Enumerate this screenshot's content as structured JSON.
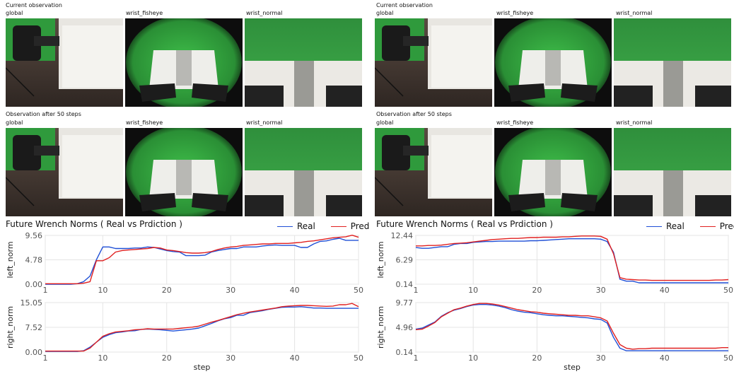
{
  "panels": [
    {
      "current_label": "Current observation",
      "after_label": "Observation after 50 steps",
      "camera_labels": [
        "global",
        "wrist_fisheye",
        "wrist_normal"
      ]
    },
    {
      "current_label": "Current observation",
      "after_label": "Observation after 50 steps",
      "camera_labels": [
        "global",
        "wrist_fisheye",
        "wrist_normal"
      ]
    }
  ],
  "chart_data": [
    {
      "type": "line",
      "title": "Future Wrench Norms ( Real vs Prdiction )",
      "legend": [
        "Real",
        "Pred"
      ],
      "legend_position": "top-right",
      "colors": {
        "Real": "#1f4fd6",
        "Pred": "#e02020"
      },
      "grid": true,
      "subplots": [
        {
          "ylabel": "left_norm",
          "yticks": [
            "0.00",
            "4.78",
            "9.56"
          ],
          "ylim": [
            0,
            9.56
          ],
          "xticks": [
            "1",
            "10",
            "20",
            "30",
            "40",
            "50"
          ],
          "xlim": [
            1,
            50
          ],
          "x": [
            1,
            2,
            3,
            4,
            5,
            6,
            7,
            8,
            9,
            10,
            11,
            12,
            13,
            14,
            15,
            16,
            17,
            18,
            19,
            20,
            21,
            22,
            23,
            24,
            25,
            26,
            27,
            28,
            29,
            30,
            31,
            32,
            33,
            34,
            35,
            36,
            37,
            38,
            39,
            40,
            41,
            42,
            43,
            44,
            45,
            46,
            47,
            48,
            49,
            50
          ],
          "series": [
            {
              "name": "Real",
              "values": [
                0.0,
                0.0,
                0.0,
                0.0,
                0.0,
                0.1,
                0.5,
                1.6,
                4.8,
                7.3,
                7.3,
                7.0,
                7.0,
                7.0,
                7.1,
                7.1,
                7.3,
                7.2,
                6.9,
                6.6,
                6.4,
                6.3,
                5.6,
                5.6,
                5.6,
                5.7,
                6.3,
                6.6,
                6.8,
                7.0,
                7.0,
                7.3,
                7.3,
                7.3,
                7.5,
                7.6,
                7.7,
                7.6,
                7.6,
                7.6,
                7.2,
                7.2,
                7.9,
                8.4,
                8.5,
                8.8,
                9.0,
                8.6,
                8.6,
                8.6
              ]
            },
            {
              "name": "Pred",
              "values": [
                0.1,
                0.1,
                0.1,
                0.1,
                0.1,
                0.1,
                0.2,
                0.5,
                4.6,
                4.6,
                5.2,
                6.3,
                6.6,
                6.7,
                6.8,
                6.9,
                7.0,
                7.2,
                7.1,
                6.7,
                6.6,
                6.4,
                6.2,
                6.1,
                6.1,
                6.2,
                6.4,
                6.8,
                7.1,
                7.3,
                7.4,
                7.6,
                7.7,
                7.8,
                7.9,
                7.9,
                8.0,
                8.0,
                8.0,
                8.1,
                8.2,
                8.4,
                8.5,
                8.7,
                8.9,
                9.1,
                9.2,
                9.3,
                9.6,
                9.2
              ]
            }
          ]
        },
        {
          "ylabel": "right_norm",
          "xlabel": "step",
          "yticks": [
            "0.00",
            "7.52",
            "15.05"
          ],
          "ylim": [
            0,
            15.05
          ],
          "xticks": [
            "1",
            "10",
            "20",
            "30",
            "40",
            "50"
          ],
          "xlim": [
            1,
            50
          ],
          "x": [
            1,
            2,
            3,
            4,
            5,
            6,
            7,
            8,
            9,
            10,
            11,
            12,
            13,
            14,
            15,
            16,
            17,
            18,
            19,
            20,
            21,
            22,
            23,
            24,
            25,
            26,
            27,
            28,
            29,
            30,
            31,
            32,
            33,
            34,
            35,
            36,
            37,
            38,
            39,
            40,
            41,
            42,
            43,
            44,
            45,
            46,
            47,
            48,
            49,
            50
          ],
          "series": [
            {
              "name": "Real",
              "values": [
                0.2,
                0.2,
                0.2,
                0.2,
                0.2,
                0.2,
                0.4,
                1.5,
                3.0,
                4.5,
                5.3,
                5.9,
                6.1,
                6.4,
                6.5,
                6.9,
                7.0,
                6.9,
                6.8,
                6.6,
                6.4,
                6.6,
                6.8,
                7.0,
                7.3,
                8.0,
                8.7,
                9.5,
                10.1,
                10.5,
                11.2,
                11.2,
                12.0,
                12.3,
                12.6,
                13.0,
                13.3,
                13.6,
                13.7,
                13.7,
                13.8,
                13.6,
                13.4,
                13.4,
                13.3,
                13.3,
                13.3,
                13.3,
                13.3,
                13.3
              ]
            },
            {
              "name": "Pred",
              "values": [
                0.3,
                0.3,
                0.3,
                0.3,
                0.3,
                0.3,
                0.3,
                1.2,
                3.0,
                4.8,
                5.6,
                6.1,
                6.3,
                6.5,
                6.8,
                6.9,
                7.1,
                7.0,
                7.0,
                7.0,
                7.0,
                7.2,
                7.4,
                7.6,
                7.9,
                8.5,
                9.1,
                9.6,
                10.2,
                10.8,
                11.4,
                11.8,
                12.2,
                12.5,
                12.8,
                13.1,
                13.4,
                13.8,
                14.0,
                14.1,
                14.2,
                14.2,
                14.1,
                14.0,
                13.9,
                14.0,
                14.4,
                14.4,
                14.8,
                13.8
              ]
            }
          ]
        }
      ]
    },
    {
      "type": "line",
      "title": "Future Wrench Norms ( Real vs Prdiction )",
      "legend": [
        "Real",
        "Pred"
      ],
      "legend_position": "top-right",
      "colors": {
        "Real": "#1f4fd6",
        "Pred": "#e02020"
      },
      "grid": true,
      "subplots": [
        {
          "ylabel": "left_norm",
          "yticks": [
            "0.14",
            "6.29",
            "12.44"
          ],
          "ylim": [
            0.14,
            12.44
          ],
          "xticks": [
            "1",
            "10",
            "20",
            "30",
            "40",
            "50"
          ],
          "xlim": [
            1,
            50
          ],
          "x": [
            1,
            2,
            3,
            4,
            5,
            6,
            7,
            8,
            9,
            10,
            11,
            12,
            13,
            14,
            15,
            16,
            17,
            18,
            19,
            20,
            21,
            22,
            23,
            24,
            25,
            26,
            27,
            28,
            29,
            30,
            31,
            32,
            33,
            34,
            35,
            36,
            37,
            38,
            39,
            40,
            41,
            42,
            43,
            44,
            45,
            46,
            47,
            48,
            49,
            50
          ],
          "series": [
            {
              "name": "Real",
              "values": [
                9.4,
                9.2,
                9.2,
                9.4,
                9.6,
                9.6,
                10.2,
                10.4,
                10.4,
                10.7,
                10.8,
                10.9,
                10.9,
                11.0,
                11.0,
                11.0,
                11.0,
                11.0,
                11.1,
                11.1,
                11.2,
                11.3,
                11.4,
                11.5,
                11.6,
                11.6,
                11.6,
                11.6,
                11.6,
                11.5,
                10.9,
                8.2,
                1.4,
                0.9,
                0.9,
                0.5,
                0.5,
                0.5,
                0.5,
                0.5,
                0.5,
                0.5,
                0.5,
                0.5,
                0.5,
                0.5,
                0.5,
                0.5,
                0.5,
                0.5
              ]
            },
            {
              "name": "Pred",
              "values": [
                9.8,
                9.8,
                9.9,
                9.9,
                10.0,
                10.2,
                10.4,
                10.5,
                10.6,
                10.8,
                11.0,
                11.2,
                11.4,
                11.5,
                11.6,
                11.7,
                11.7,
                11.8,
                11.9,
                11.9,
                12.0,
                12.0,
                12.0,
                12.1,
                12.1,
                12.2,
                12.3,
                12.3,
                12.3,
                12.2,
                11.5,
                7.8,
                1.8,
                1.4,
                1.3,
                1.2,
                1.2,
                1.1,
                1.1,
                1.1,
                1.1,
                1.1,
                1.1,
                1.1,
                1.1,
                1.1,
                1.1,
                1.2,
                1.2,
                1.3
              ]
            }
          ]
        },
        {
          "ylabel": "right_norm",
          "xlabel": "step",
          "yticks": [
            "0.14",
            "4.96",
            "9.77"
          ],
          "ylim": [
            0.14,
            9.77
          ],
          "xticks": [
            "1",
            "10",
            "20",
            "30",
            "40",
            "50"
          ],
          "xlim": [
            1,
            50
          ],
          "x": [
            1,
            2,
            3,
            4,
            5,
            6,
            7,
            8,
            9,
            10,
            11,
            12,
            13,
            14,
            15,
            16,
            17,
            18,
            19,
            20,
            21,
            22,
            23,
            24,
            25,
            26,
            27,
            28,
            29,
            30,
            31,
            32,
            33,
            34,
            35,
            36,
            37,
            38,
            39,
            40,
            41,
            42,
            43,
            44,
            45,
            46,
            47,
            48,
            49,
            50
          ],
          "series": [
            {
              "name": "Real",
              "values": [
                4.6,
                4.8,
                5.4,
                6.0,
                7.1,
                7.8,
                8.3,
                8.6,
                9.0,
                9.3,
                9.4,
                9.4,
                9.3,
                9.1,
                8.8,
                8.4,
                8.1,
                7.9,
                7.8,
                7.6,
                7.4,
                7.3,
                7.2,
                7.2,
                7.1,
                7.0,
                6.9,
                6.8,
                6.6,
                6.5,
                5.8,
                3.0,
                0.9,
                0.4,
                0.4,
                0.4,
                0.4,
                0.4,
                0.4,
                0.4,
                0.4,
                0.4,
                0.4,
                0.4,
                0.4,
                0.4,
                0.4,
                0.4,
                0.4,
                0.4
              ]
            },
            {
              "name": "Pred",
              "values": [
                4.5,
                4.6,
                5.2,
                5.9,
                7.0,
                7.7,
                8.4,
                8.7,
                9.1,
                9.4,
                9.6,
                9.6,
                9.5,
                9.3,
                9.0,
                8.7,
                8.4,
                8.2,
                8.0,
                7.9,
                7.7,
                7.6,
                7.5,
                7.4,
                7.3,
                7.3,
                7.2,
                7.2,
                7.0,
                6.8,
                6.2,
                3.8,
                1.6,
                0.9,
                0.7,
                0.8,
                0.8,
                0.9,
                0.9,
                0.9,
                0.9,
                0.9,
                0.9,
                0.9,
                0.9,
                0.9,
                0.9,
                0.9,
                1.0,
                1.0
              ]
            }
          ]
        }
      ]
    }
  ]
}
